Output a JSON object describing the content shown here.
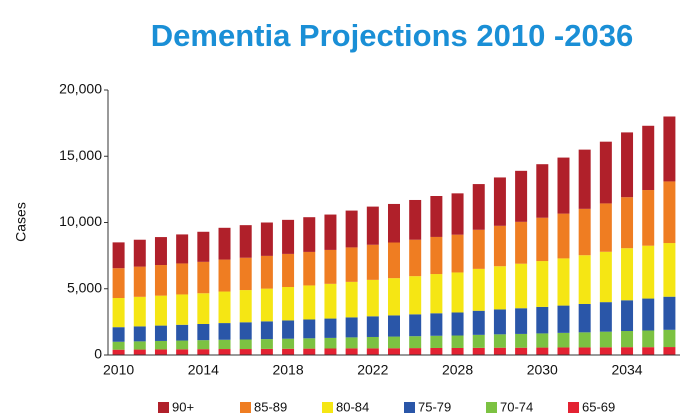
{
  "chart_data": {
    "type": "stacked_bar",
    "title": "Dementia Projections 2010 -2036",
    "y_label": "Cases",
    "categories": [
      "2010",
      null,
      null,
      null,
      "2014",
      null,
      null,
      null,
      "2018",
      null,
      null,
      null,
      "2022",
      null,
      null,
      null,
      "2028",
      null,
      null,
      null,
      "2030",
      null,
      null,
      null,
      "2034",
      null,
      null
    ],
    "series": [
      {
        "name": "65-69",
        "color": "#e32232",
        "values": [
          400,
          410,
          420,
          430,
          440,
          450,
          450,
          460,
          470,
          480,
          490,
          500,
          500,
          510,
          520,
          530,
          530,
          540,
          550,
          550,
          560,
          570,
          570,
          580,
          590,
          590,
          600
        ]
      },
      {
        "name": "70-74",
        "color": "#7cc242",
        "values": [
          600,
          620,
          640,
          660,
          680,
          700,
          720,
          740,
          760,
          780,
          800,
          830,
          860,
          880,
          900,
          920,
          940,
          980,
          1010,
          1040,
          1070,
          1100,
          1140,
          1180,
          1220,
          1260,
          1300
        ]
      },
      {
        "name": "75-79",
        "color": "#2a56a8",
        "values": [
          1100,
          1130,
          1160,
          1190,
          1220,
          1260,
          1300,
          1340,
          1380,
          1420,
          1460,
          1510,
          1560,
          1600,
          1650,
          1700,
          1740,
          1820,
          1880,
          1940,
          2000,
          2060,
          2140,
          2230,
          2320,
          2410,
          2500
        ]
      },
      {
        "name": "80-84",
        "color": "#f5e614",
        "values": [
          2200,
          2230,
          2260,
          2290,
          2320,
          2380,
          2430,
          2470,
          2520,
          2570,
          2620,
          2680,
          2750,
          2810,
          2880,
          2960,
          3020,
          3160,
          3260,
          3360,
          3460,
          3560,
          3680,
          3800,
          3930,
          3990,
          4050
        ]
      },
      {
        "name": "85-89",
        "color": "#ef7d22",
        "values": [
          2250,
          2280,
          2310,
          2340,
          2370,
          2410,
          2440,
          2470,
          2500,
          2530,
          2560,
          2600,
          2650,
          2690,
          2750,
          2800,
          2850,
          2950,
          3050,
          3160,
          3270,
          3380,
          3500,
          3650,
          3850,
          4200,
          4650
        ]
      },
      {
        "name": "90+",
        "color": "#b0202a",
        "values": [
          1950,
          2030,
          2110,
          2190,
          2270,
          2400,
          2460,
          2520,
          2570,
          2620,
          2670,
          2780,
          2880,
          2910,
          3000,
          3090,
          3120,
          3450,
          3650,
          3850,
          4040,
          4230,
          4470,
          4660,
          4890,
          4850,
          4900
        ]
      }
    ],
    "ylim": [
      0,
      20000
    ],
    "yticks": [
      0,
      {
        "value": 5000,
        "label": "5,000"
      },
      {
        "value": 10000,
        "label": "10,000"
      },
      {
        "value": 15000,
        "label": "15,000"
      },
      {
        "value": 20000,
        "label": "20,000"
      }
    ],
    "grid": false,
    "legend": "bottom"
  }
}
